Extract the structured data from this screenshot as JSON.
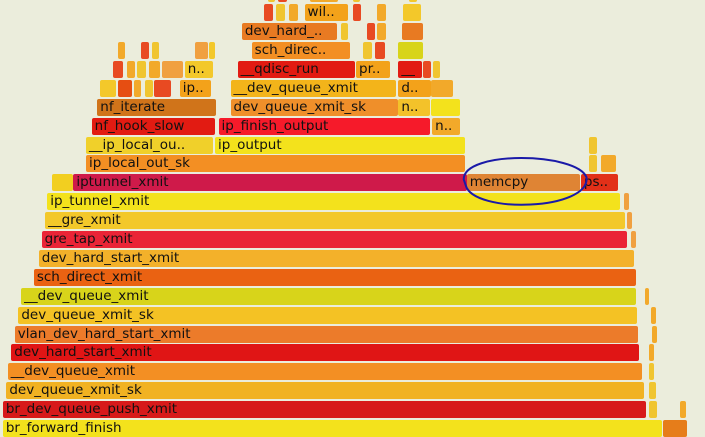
{
  "chart_data": {
    "type": "flame",
    "description_unit": "x values are fractions of the sampled root width",
    "frames": [
      {
        "depth": 0,
        "x": 0.004,
        "w": 0.935,
        "label": "br_forward_finish",
        "color": "#f3e21c"
      },
      {
        "depth": 0,
        "x": 0.94,
        "w": 0.035,
        "label": "",
        "color": "#e67d1a"
      },
      {
        "depth": 1,
        "x": 0.004,
        "w": 0.912,
        "label": "br_dev_queue_push_xmit",
        "color": "#d71a1a"
      },
      {
        "depth": 1,
        "x": 0.92,
        "w": 0.012,
        "label": "",
        "color": "#f0c530"
      },
      {
        "depth": 1,
        "x": 0.965,
        "w": 0.008,
        "label": "",
        "color": "#f2a92a"
      },
      {
        "depth": 2,
        "x": 0.009,
        "w": 0.905,
        "label": "dev_queue_xmit_sk",
        "color": "#f1b222"
      },
      {
        "depth": 2,
        "x": 0.92,
        "w": 0.01,
        "label": "",
        "color": "#f0c530"
      },
      {
        "depth": 3,
        "x": 0.011,
        "w": 0.9,
        "label": "__dev_queue_xmit",
        "color": "#f38f23"
      },
      {
        "depth": 3,
        "x": 0.92,
        "w": 0.008,
        "label": "",
        "color": "#f0c530"
      },
      {
        "depth": 4,
        "x": 0.016,
        "w": 0.891,
        "label": "dev_hard_start_xmit",
        "color": "#e01515"
      },
      {
        "depth": 4,
        "x": 0.92,
        "w": 0.008,
        "label": "",
        "color": "#f2a92a"
      },
      {
        "depth": 5,
        "x": 0.021,
        "w": 0.884,
        "label": "vlan_dev_hard_start_xmit",
        "color": "#ec7b2a"
      },
      {
        "depth": 5,
        "x": 0.925,
        "w": 0.007,
        "label": "",
        "color": "#f2a92a"
      },
      {
        "depth": 6,
        "x": 0.026,
        "w": 0.878,
        "label": "dev_queue_xmit_sk",
        "color": "#f4c224"
      },
      {
        "depth": 6,
        "x": 0.924,
        "w": 0.007,
        "label": "",
        "color": "#f2a92a"
      },
      {
        "depth": 7,
        "x": 0.03,
        "w": 0.872,
        "label": "__dev_queue_xmit",
        "color": "#d8d41a"
      },
      {
        "depth": 7,
        "x": 0.915,
        "w": 0.006,
        "label": "",
        "color": "#f2a92a"
      },
      {
        "depth": 8,
        "x": 0.048,
        "w": 0.854,
        "label": "sch_direct_xmit",
        "color": "#ea6212"
      },
      {
        "depth": 9,
        "x": 0.055,
        "w": 0.845,
        "label": "dev_hard_start_xmit",
        "color": "#f3b12a"
      },
      {
        "depth": 10,
        "x": 0.059,
        "w": 0.83,
        "label": "gre_tap_xmit",
        "color": "#ea2436"
      },
      {
        "depth": 10,
        "x": 0.895,
        "w": 0.007,
        "label": "",
        "color": "#f0a040"
      },
      {
        "depth": 11,
        "x": 0.064,
        "w": 0.822,
        "label": "__gre_xmit",
        "color": "#f3c82a"
      },
      {
        "depth": 11,
        "x": 0.89,
        "w": 0.007,
        "label": "",
        "color": "#f0a040"
      },
      {
        "depth": 12,
        "x": 0.067,
        "w": 0.813,
        "label": "ip_tunnel_xmit",
        "color": "#f3e21c"
      },
      {
        "depth": 12,
        "x": 0.885,
        "w": 0.007,
        "label": "",
        "color": "#f0a040"
      },
      {
        "depth": 13,
        "x": 0.074,
        "w": 0.03,
        "label": "",
        "color": "#f2cf20"
      },
      {
        "depth": 13,
        "x": 0.104,
        "w": 0.558,
        "label": "iptunnel_xmit",
        "color": "#cf1a4a"
      },
      {
        "depth": 13,
        "x": 0.662,
        "w": 0.16,
        "label": "memcpy",
        "color": "#df8434"
      },
      {
        "depth": 13,
        "x": 0.824,
        "w": 0.052,
        "label": "ps..",
        "color": "#e23018"
      },
      {
        "depth": 14,
        "x": 0.122,
        "w": 0.538,
        "label": "ip_local_out_sk",
        "color": "#f38f23"
      },
      {
        "depth": 14,
        "x": 0.835,
        "w": 0.012,
        "label": "",
        "color": "#f0c530"
      },
      {
        "depth": 14,
        "x": 0.852,
        "w": 0.022,
        "label": "",
        "color": "#f2a92a"
      },
      {
        "depth": 15,
        "x": 0.122,
        "w": 0.18,
        "label": "__ip_local_ou..",
        "color": "#f0d02a"
      },
      {
        "depth": 15,
        "x": 0.305,
        "w": 0.355,
        "label": "ip_output",
        "color": "#f3e21c"
      },
      {
        "depth": 15,
        "x": 0.835,
        "w": 0.012,
        "label": "",
        "color": "#f0c530"
      },
      {
        "depth": 16,
        "x": 0.13,
        "w": 0.175,
        "label": "nf_hook_slow",
        "color": "#e21b12"
      },
      {
        "depth": 16,
        "x": 0.31,
        "w": 0.3,
        "label": "ip_finish_output",
        "color": "#f61a2a"
      },
      {
        "depth": 16,
        "x": 0.613,
        "w": 0.04,
        "label": "n..",
        "color": "#f2a92a"
      },
      {
        "depth": 17,
        "x": 0.138,
        "w": 0.168,
        "label": "nf_iterate",
        "color": "#d0741a"
      },
      {
        "depth": 17,
        "x": 0.327,
        "w": 0.238,
        "label": "dev_queue_xmit_sk",
        "color": "#ef8f2a"
      },
      {
        "depth": 17,
        "x": 0.565,
        "w": 0.045,
        "label": "n..",
        "color": "#f3c22a"
      },
      {
        "depth": 17,
        "x": 0.612,
        "w": 0.04,
        "label": "",
        "color": "#f3e21c"
      },
      {
        "depth": 18,
        "x": 0.142,
        "w": 0.022,
        "label": "",
        "color": "#f3c82a"
      },
      {
        "depth": 18,
        "x": 0.167,
        "w": 0.02,
        "label": "",
        "color": "#e64e12"
      },
      {
        "depth": 18,
        "x": 0.19,
        "w": 0.01,
        "label": "",
        "color": "#f2a92a"
      },
      {
        "depth": 18,
        "x": 0.205,
        "w": 0.012,
        "label": "",
        "color": "#f0c530"
      },
      {
        "depth": 18,
        "x": 0.218,
        "w": 0.025,
        "label": "",
        "color": "#e84a22"
      },
      {
        "depth": 18,
        "x": 0.255,
        "w": 0.045,
        "label": "ip..",
        "color": "#f3a21a"
      },
      {
        "depth": 18,
        "x": 0.327,
        "w": 0.235,
        "label": "__dev_queue_xmit",
        "color": "#f3b41a"
      },
      {
        "depth": 18,
        "x": 0.565,
        "w": 0.046,
        "label": "d..",
        "color": "#f3a21a"
      },
      {
        "depth": 18,
        "x": 0.612,
        "w": 0.03,
        "label": "",
        "color": "#f2a92a"
      },
      {
        "depth": 19,
        "x": 0.16,
        "w": 0.015,
        "label": "",
        "color": "#e84a22"
      },
      {
        "depth": 19,
        "x": 0.18,
        "w": 0.012,
        "label": "",
        "color": "#f2a92a"
      },
      {
        "depth": 19,
        "x": 0.195,
        "w": 0.012,
        "label": "",
        "color": "#f0c530"
      },
      {
        "depth": 19,
        "x": 0.212,
        "w": 0.015,
        "label": "",
        "color": "#f2a92a"
      },
      {
        "depth": 19,
        "x": 0.23,
        "w": 0.03,
        "label": "",
        "color": "#f0a040"
      },
      {
        "depth": 19,
        "x": 0.262,
        "w": 0.04,
        "label": "n..",
        "color": "#f3c82a"
      },
      {
        "depth": 19,
        "x": 0.337,
        "w": 0.166,
        "label": "__qdisc_run",
        "color": "#e21b12"
      },
      {
        "depth": 19,
        "x": 0.505,
        "w": 0.048,
        "label": "pr..",
        "color": "#f3a21a"
      },
      {
        "depth": 19,
        "x": 0.565,
        "w": 0.033,
        "label": "__",
        "color": "#e21b12"
      },
      {
        "depth": 19,
        "x": 0.6,
        "w": 0.012,
        "label": "",
        "color": "#e84a22"
      },
      {
        "depth": 19,
        "x": 0.614,
        "w": 0.01,
        "label": "",
        "color": "#f0c530"
      },
      {
        "depth": 20,
        "x": 0.168,
        "w": 0.01,
        "label": "",
        "color": "#f2a92a"
      },
      {
        "depth": 20,
        "x": 0.2,
        "w": 0.012,
        "label": "",
        "color": "#e84a22"
      },
      {
        "depth": 20,
        "x": 0.215,
        "w": 0.01,
        "label": "",
        "color": "#f0c530"
      },
      {
        "depth": 20,
        "x": 0.277,
        "w": 0.018,
        "label": "",
        "color": "#f0a040"
      },
      {
        "depth": 20,
        "x": 0.297,
        "w": 0.008,
        "label": "",
        "color": "#f3c82a"
      },
      {
        "depth": 20,
        "x": 0.357,
        "w": 0.14,
        "label": "sch_direc..",
        "color": "#f38f23"
      },
      {
        "depth": 20,
        "x": 0.515,
        "w": 0.012,
        "label": "",
        "color": "#f0c530"
      },
      {
        "depth": 20,
        "x": 0.532,
        "w": 0.014,
        "label": "",
        "color": "#e84a22"
      },
      {
        "depth": 20,
        "x": 0.565,
        "w": 0.035,
        "label": "",
        "color": "#d8d41a"
      },
      {
        "depth": 21,
        "x": 0.343,
        "w": 0.135,
        "label": "dev_hard_..",
        "color": "#e87a22"
      },
      {
        "depth": 21,
        "x": 0.484,
        "w": 0.01,
        "label": "",
        "color": "#f0c530"
      },
      {
        "depth": 21,
        "x": 0.52,
        "w": 0.012,
        "label": "",
        "color": "#e84a22"
      },
      {
        "depth": 21,
        "x": 0.535,
        "w": 0.012,
        "label": "",
        "color": "#f2a92a"
      },
      {
        "depth": 21,
        "x": 0.57,
        "w": 0.03,
        "label": "",
        "color": "#e87a22"
      },
      {
        "depth": 22,
        "x": 0.375,
        "w": 0.012,
        "label": "",
        "color": "#e84a22"
      },
      {
        "depth": 22,
        "x": 0.392,
        "w": 0.012,
        "label": "",
        "color": "#f0c530"
      },
      {
        "depth": 22,
        "x": 0.41,
        "w": 0.012,
        "label": "",
        "color": "#f2a92a"
      },
      {
        "depth": 22,
        "x": 0.432,
        "w": 0.062,
        "label": "wil..",
        "color": "#f3a21a"
      },
      {
        "depth": 22,
        "x": 0.5,
        "w": 0.012,
        "label": "",
        "color": "#e84a22"
      },
      {
        "depth": 22,
        "x": 0.535,
        "w": 0.012,
        "label": "",
        "color": "#f2a92a"
      },
      {
        "depth": 22,
        "x": 0.572,
        "w": 0.025,
        "label": "",
        "color": "#f3c82a"
      },
      {
        "depth": 23,
        "x": 0.38,
        "w": 0.01,
        "label": "",
        "color": "#f0c530"
      },
      {
        "depth": 23,
        "x": 0.395,
        "w": 0.012,
        "label": "",
        "color": "#e84a22"
      },
      {
        "depth": 23,
        "x": 0.44,
        "w": 0.04,
        "label": "",
        "color": "#f2a92a"
      },
      {
        "depth": 23,
        "x": 0.5,
        "w": 0.01,
        "label": "",
        "color": "#f0c530"
      },
      {
        "depth": 23,
        "x": 0.58,
        "w": 0.012,
        "label": "",
        "color": "#f3c82a"
      }
    ],
    "highlight": {
      "target_label": "memcpy",
      "shape": "ellipse",
      "color": "#1a1aa8"
    }
  }
}
